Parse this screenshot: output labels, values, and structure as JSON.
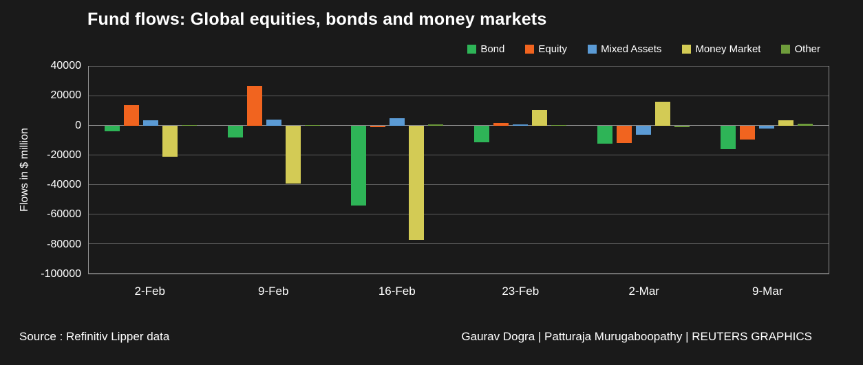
{
  "title": "Fund flows: Global equities, bonds and money markets",
  "colors": {
    "background": "#1A1A1A",
    "text": "#FFFFFF",
    "gridline": "#5E5E5E",
    "plot_border": "#909090",
    "bond": "#2EB457",
    "equity": "#F1641F",
    "mixed_assets": "#5B9BD5",
    "money_market": "#D3CB55",
    "other": "#6E9C3B"
  },
  "chart_data": {
    "type": "bar",
    "title": "Fund flows: Global equities, bonds and money markets",
    "categories": [
      "2-Feb",
      "9-Feb",
      "16-Feb",
      "23-Feb",
      "2-Mar",
      "9-Mar"
    ],
    "series": [
      {
        "name": "Bond",
        "color": "#2EB457",
        "values": [
          -3500,
          -8000,
          -54000,
          -11000,
          -12000,
          -16000
        ]
      },
      {
        "name": "Equity",
        "color": "#F1641F",
        "values": [
          14000,
          27000,
          -1000,
          2000,
          -11500,
          -9500
        ]
      },
      {
        "name": "Mixed Assets",
        "color": "#5B9BD5",
        "values": [
          3500,
          4000,
          5000,
          1000,
          -6000,
          -2000
        ]
      },
      {
        "name": "Money Market",
        "color": "#D3CB55",
        "values": [
          -21000,
          -39000,
          -77000,
          10500,
          16500,
          3500
        ]
      },
      {
        "name": "Other",
        "color": "#6E9C3B",
        "values": [
          500,
          500,
          1000,
          500,
          -400,
          1500
        ]
      }
    ],
    "xlabel": "",
    "ylabel": "Flows in $ million",
    "ylim": [
      -100000,
      40000
    ],
    "yticks": [
      40000,
      20000,
      0,
      -20000,
      -40000,
      -60000,
      -80000,
      -100000
    ],
    "grid": true,
    "legend_position": "top-right"
  },
  "footer": {
    "source": "Source : Refinitiv Lipper data",
    "credits": "Gaurav Dogra | Patturaja Murugaboopathy | REUTERS GRAPHICS"
  }
}
